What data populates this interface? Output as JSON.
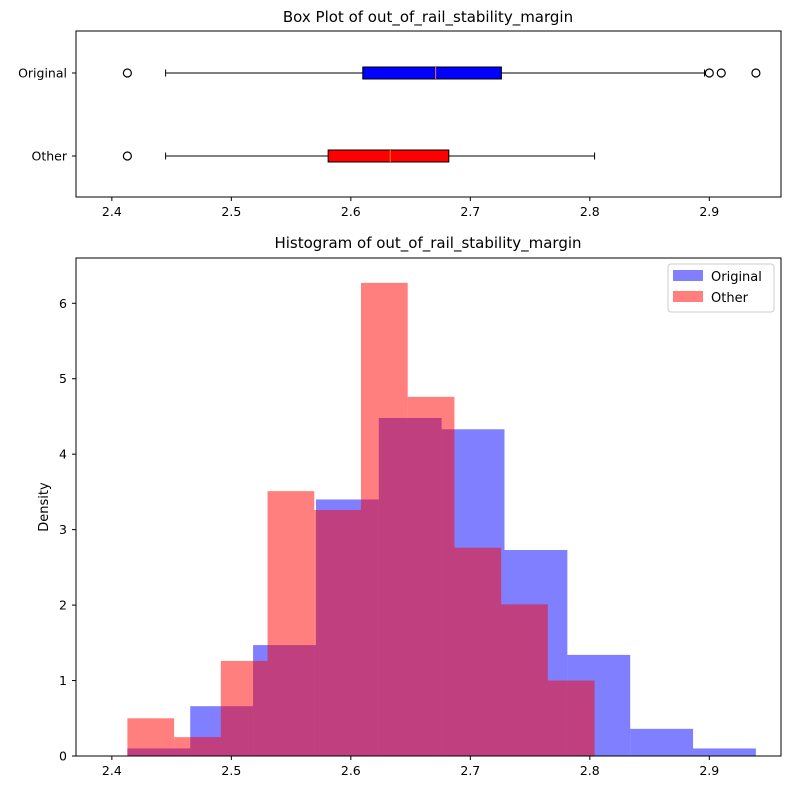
{
  "chart_data": [
    {
      "type": "box",
      "title": "Box Plot of out_of_rail_stability_margin",
      "orientation": "horizontal",
      "xlim": [
        2.37,
        2.96
      ],
      "xticks": [
        "2.4",
        "2.5",
        "2.6",
        "2.7",
        "2.8",
        "2.9"
      ],
      "xtick_values": [
        2.4,
        2.5,
        2.6,
        2.7,
        2.8,
        2.9
      ],
      "boxes": [
        {
          "name": "Original",
          "color": "#0000ff",
          "median_color": "#ff7f0e",
          "whisker_low": 2.445,
          "q1": 2.61,
          "median": 2.671,
          "q3": 2.726,
          "whisker_high": 2.896,
          "fliers": [
            2.413,
            2.9,
            2.91,
            2.939
          ]
        },
        {
          "name": "Other",
          "color": "#ff0000",
          "median_color": "#ff7f0e",
          "whisker_low": 2.445,
          "q1": 2.581,
          "median": 2.633,
          "q3": 2.682,
          "whisker_high": 2.804,
          "fliers": [
            2.413
          ]
        }
      ]
    },
    {
      "type": "histogram",
      "title": "Histogram of out_of_rail_stability_margin",
      "xlabel": "",
      "ylabel": "Density",
      "xlim": [
        2.37,
        2.96
      ],
      "ylim": [
        0,
        6.6
      ],
      "xticks": [
        "2.4",
        "2.5",
        "2.6",
        "2.7",
        "2.8",
        "2.9"
      ],
      "xtick_values": [
        2.4,
        2.5,
        2.6,
        2.7,
        2.8,
        2.9
      ],
      "yticks": [
        "0",
        "1",
        "2",
        "3",
        "4",
        "5",
        "6"
      ],
      "ytick_values": [
        0,
        1,
        2,
        3,
        4,
        5,
        6
      ],
      "legend_position": "top-right",
      "series": [
        {
          "name": "Original",
          "color": "#0000ff",
          "alpha": 0.5,
          "bin_edges": [
            2.413,
            2.4656,
            2.5182,
            2.5708,
            2.6234,
            2.676,
            2.7286,
            2.7812,
            2.8338,
            2.8864,
            2.939
          ],
          "density": [
            0.1,
            0.66,
            1.47,
            3.4,
            4.48,
            4.33,
            2.73,
            1.34,
            0.36,
            0.1
          ]
        },
        {
          "name": "Other",
          "color": "#ff0000",
          "alpha": 0.5,
          "bin_edges": [
            2.413,
            2.4521,
            2.4912,
            2.5303,
            2.5694,
            2.6085,
            2.6476,
            2.6867,
            2.7258,
            2.7649,
            2.804
          ],
          "density": [
            0.5,
            0.25,
            1.26,
            3.51,
            3.26,
            6.27,
            4.76,
            2.76,
            2.01,
            1.0
          ]
        }
      ]
    }
  ]
}
